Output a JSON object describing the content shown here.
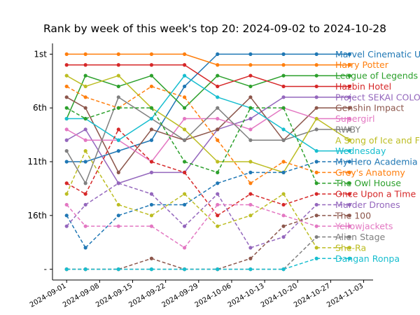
{
  "chart_data": {
    "type": "line",
    "title": "Rank by week of this week's top 20: 2024-09-02 to 2024-10-28",
    "xlabel": "",
    "ylabel": "",
    "x": [
      "2024-09-01",
      "2024-09-05",
      "2024-09-12",
      "2024-09-19",
      "2024-09-26",
      "2024-10-03",
      "2024-10-10",
      "2024-10-17",
      "2024-10-24",
      "2024-10-31"
    ],
    "x_tick_labels": [
      "2024-09-01",
      "2024-09-08",
      "2024-09-15",
      "2024-09-22",
      "2024-09-29",
      "2024-10-06",
      "2024-10-13",
      "2024-10-20",
      "2024-10-27",
      "2024-11-03"
    ],
    "y_tick_labels": [
      "1st",
      "6th",
      "11th",
      "16th",
      "-"
    ],
    "y_tick_values": [
      1,
      6,
      11,
      16,
      21
    ],
    "ylim": [
      22,
      0
    ],
    "grid": false,
    "legend": "right",
    "missing_rank_label": "-",
    "series": [
      {
        "name": "Marvel Cinematic U",
        "color": "#1f77b4",
        "values": [
          11,
          11,
          10,
          9,
          4,
          1,
          1,
          1,
          1,
          1
        ],
        "dashed": [
          false,
          false,
          false,
          false,
          false,
          false,
          false,
          false,
          false,
          false
        ]
      },
      {
        "name": "Harry Potter",
        "color": "#ff7f0e",
        "values": [
          1,
          1,
          1,
          1,
          1,
          2,
          2,
          2,
          2,
          2
        ],
        "dashed": [
          false,
          false,
          false,
          false,
          false,
          false,
          false,
          false,
          false,
          false
        ]
      },
      {
        "name": "League of Legends",
        "color": "#2ca02c",
        "values": [
          7,
          3,
          4,
          3,
          6,
          3,
          4,
          3,
          3,
          3
        ],
        "dashed": [
          false,
          false,
          false,
          false,
          false,
          false,
          false,
          false,
          false,
          false
        ]
      },
      {
        "name": "Hazbin Hotel",
        "color": "#d62728",
        "values": [
          2,
          2,
          2,
          2,
          2,
          4,
          3,
          4,
          4,
          4
        ],
        "dashed": [
          false,
          false,
          false,
          false,
          false,
          false,
          false,
          false,
          false,
          false
        ]
      },
      {
        "name": "Project SEKAI COLO",
        "color": "#9467bd",
        "values": [
          9,
          8,
          13,
          12,
          12,
          8,
          7,
          5,
          5,
          5
        ],
        "dashed": [
          false,
          false,
          false,
          false,
          false,
          false,
          false,
          false,
          false,
          false
        ]
      },
      {
        "name": "Genshin Impact",
        "color": "#8c564b",
        "values": [
          5,
          6,
          12,
          8,
          9,
          8,
          5,
          9,
          6,
          6
        ],
        "dashed": [
          false,
          false,
          false,
          false,
          false,
          false,
          false,
          false,
          false,
          false
        ]
      },
      {
        "name": "Supergirl",
        "color": "#e377c2",
        "values": [
          8,
          9,
          9,
          11,
          7,
          7,
          8,
          6,
          7,
          7
        ],
        "dashed": [
          false,
          false,
          false,
          false,
          false,
          false,
          false,
          false,
          false,
          false
        ]
      },
      {
        "name": "RWBY",
        "color": "#7f7f7f",
        "values": [
          10,
          13,
          5,
          7,
          9,
          6,
          9,
          9,
          8,
          8
        ],
        "dashed": [
          false,
          false,
          false,
          false,
          false,
          false,
          false,
          false,
          false,
          false
        ]
      },
      {
        "name": "A Song of Ice and F",
        "color": "#bcbd22",
        "values": [
          3,
          4,
          3,
          6,
          8,
          11,
          11,
          12,
          7,
          9
        ],
        "dashed": [
          false,
          false,
          false,
          false,
          false,
          false,
          false,
          false,
          false,
          false
        ]
      },
      {
        "name": "Wednesday",
        "color": "#17becf",
        "values": [
          7,
          7,
          9,
          7,
          3,
          5,
          6,
          8,
          10,
          10
        ],
        "dashed": [
          false,
          false,
          false,
          false,
          false,
          false,
          false,
          false,
          false,
          false
        ]
      },
      {
        "name": "My Hero Academia",
        "color": "#1f77b4",
        "values": [
          16,
          19,
          16,
          15,
          15,
          13,
          12,
          12,
          11,
          11
        ],
        "dashed": [
          false,
          true,
          true,
          true,
          true,
          true,
          true,
          true,
          true,
          true
        ]
      },
      {
        "name": "Grey's Anatomy",
        "color": "#ff7f0e",
        "values": [
          4,
          5,
          6,
          4,
          5,
          9,
          13,
          11,
          12,
          12
        ],
        "dashed": [
          false,
          true,
          true,
          true,
          true,
          true,
          true,
          true,
          true,
          true
        ]
      },
      {
        "name": "The Owl House",
        "color": "#2ca02c",
        "values": [
          6,
          7,
          6,
          6,
          11,
          12,
          6,
          6,
          13,
          13
        ],
        "dashed": [
          false,
          true,
          true,
          true,
          true,
          true,
          true,
          true,
          true,
          true
        ]
      },
      {
        "name": "Once Upon a Time",
        "color": "#d62728",
        "values": [
          13,
          14,
          8,
          11,
          12,
          16,
          14,
          15,
          14,
          14
        ],
        "dashed": [
          false,
          true,
          true,
          true,
          true,
          true,
          true,
          true,
          true,
          true
        ]
      },
      {
        "name": "Murder Drones",
        "color": "#9467bd",
        "values": [
          17,
          15,
          13,
          14,
          17,
          14,
          19,
          18,
          15,
          15
        ],
        "dashed": [
          false,
          true,
          true,
          true,
          true,
          true,
          true,
          true,
          true,
          true
        ]
      },
      {
        "name": "The 100",
        "color": "#8c564b",
        "values": [
          21,
          21,
          21,
          20,
          21,
          21,
          20,
          17,
          16,
          16
        ],
        "dashed": [
          false,
          true,
          true,
          true,
          true,
          true,
          true,
          true,
          true,
          true
        ]
      },
      {
        "name": "Yellowjackets",
        "color": "#e377c2",
        "values": [
          15,
          17,
          17,
          17,
          19,
          15,
          15,
          16,
          17,
          17
        ],
        "dashed": [
          false,
          true,
          true,
          true,
          true,
          true,
          true,
          true,
          true,
          true
        ]
      },
      {
        "name": "Alien Stage",
        "color": "#7f7f7f",
        "values": [
          21,
          21,
          21,
          21,
          21,
          21,
          21,
          21,
          18,
          18
        ],
        "dashed": [
          false,
          true,
          true,
          true,
          true,
          true,
          true,
          true,
          true,
          true
        ]
      },
      {
        "name": "She-Ra",
        "color": "#bcbd22",
        "values": [
          14,
          10,
          15,
          16,
          14,
          17,
          16,
          14,
          19,
          19
        ],
        "dashed": [
          false,
          true,
          true,
          true,
          true,
          true,
          true,
          true,
          true,
          true
        ]
      },
      {
        "name": "Dangan Ronpa",
        "color": "#17becf",
        "values": [
          21,
          21,
          21,
          21,
          21,
          21,
          21,
          21,
          20,
          20
        ],
        "dashed": [
          false,
          true,
          true,
          true,
          true,
          true,
          true,
          true,
          true,
          true
        ]
      }
    ]
  }
}
